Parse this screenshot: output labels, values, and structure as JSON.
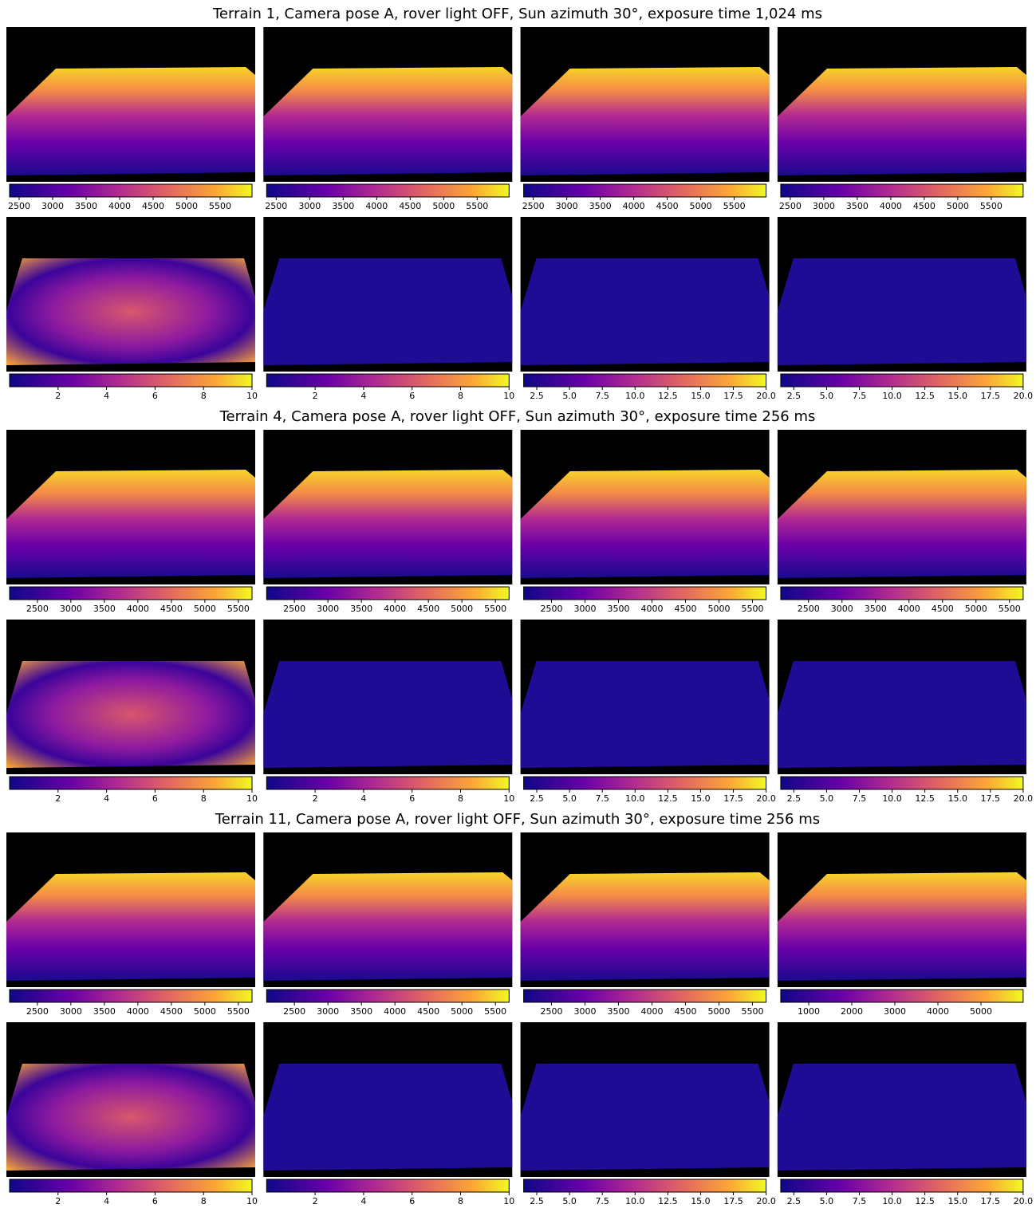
{
  "sections": [
    {
      "title": "Terrain 1, Camera pose A, rover light OFF, Sun azimuth 30°, exposure time 1,024 ms",
      "rows": [
        {
          "colorbars": [
            {
              "range": [
                2357,
                5976
              ],
              "ticks": [
                2500,
                3000,
                3500,
                4000,
                4500,
                5000,
                5500
              ]
            },
            {
              "range": [
                2357,
                5976
              ],
              "ticks": [
                2500,
                3000,
                3500,
                4000,
                4500,
                5000,
                5500
              ]
            },
            {
              "range": [
                2357,
                5976
              ],
              "ticks": [
                2500,
                3000,
                3500,
                4000,
                4500,
                5000,
                5500
              ]
            },
            {
              "range": [
                2357,
                5976
              ],
              "ticks": [
                2500,
                3000,
                3500,
                4000,
                4500,
                5000,
                5500
              ]
            }
          ]
        },
        {
          "colorbars": [
            {
              "range": [
                0,
                10
              ],
              "ticks": [
                2,
                4,
                6,
                8,
                10
              ]
            },
            {
              "range": [
                0,
                10
              ],
              "ticks": [
                2,
                4,
                6,
                8,
                10
              ]
            },
            {
              "range": [
                1.5,
                20
              ],
              "ticks": [
                2.5,
                {
                  "value": 5,
                  "label": "5.0"
                },
                7.5,
                {
                  "value": 10,
                  "label": "10.0"
                },
                12.5,
                {
                  "value": 15,
                  "label": "15.0"
                },
                17.5,
                {
                  "value": 20,
                  "label": "20.0"
                }
              ]
            },
            {
              "range": [
                1.5,
                20
              ],
              "ticks": [
                2.5,
                {
                  "value": 5,
                  "label": "5.0"
                },
                7.5,
                {
                  "value": 10,
                  "label": "10.0"
                },
                12.5,
                {
                  "value": 15,
                  "label": "15.0"
                },
                17.5,
                {
                  "value": 20,
                  "label": "20.0"
                }
              ]
            }
          ]
        }
      ]
    },
    {
      "title": "Terrain 4, Camera pose A, rover light OFF, Sun azimuth 30°, exposure time 256 ms",
      "rows": [
        {
          "colorbars": [
            {
              "range": [
                2085,
                5704
              ],
              "ticks": [
                2500,
                3000,
                3500,
                4000,
                4500,
                5000,
                5500
              ]
            },
            {
              "range": [
                2085,
                5704
              ],
              "ticks": [
                2500,
                3000,
                3500,
                4000,
                4500,
                5000,
                5500
              ]
            },
            {
              "range": [
                2085,
                5704
              ],
              "ticks": [
                2500,
                3000,
                3500,
                4000,
                4500,
                5000,
                5500
              ]
            },
            {
              "range": [
                2085,
                5704
              ],
              "ticks": [
                2500,
                3000,
                3500,
                4000,
                4500,
                5000,
                5500
              ]
            }
          ]
        },
        {
          "colorbars": [
            {
              "range": [
                0,
                10
              ],
              "ticks": [
                2,
                4,
                6,
                8,
                10
              ]
            },
            {
              "range": [
                0,
                10
              ],
              "ticks": [
                2,
                4,
                6,
                8,
                10
              ]
            },
            {
              "range": [
                1.5,
                20
              ],
              "ticks": [
                2.5,
                {
                  "value": 5,
                  "label": "5.0"
                },
                7.5,
                {
                  "value": 10,
                  "label": "10.0"
                },
                12.5,
                {
                  "value": 15,
                  "label": "15.0"
                },
                17.5,
                {
                  "value": 20,
                  "label": "20.0"
                }
              ]
            },
            {
              "range": [
                1.5,
                20
              ],
              "ticks": [
                2.5,
                {
                  "value": 5,
                  "label": "5.0"
                },
                7.5,
                {
                  "value": 10,
                  "label": "10.0"
                },
                12.5,
                {
                  "value": 15,
                  "label": "15.0"
                },
                17.5,
                {
                  "value": 20,
                  "label": "20.0"
                }
              ]
            }
          ]
        }
      ]
    },
    {
      "title": "Terrain 11, Camera pose A, rover light OFF, Sun azimuth 30°, exposure time 256 ms",
      "rows": [
        {
          "colorbars": [
            {
              "range": [
                2085,
                5704
              ],
              "ticks": [
                2500,
                3000,
                3500,
                4000,
                4500,
                5000,
                5500
              ]
            },
            {
              "range": [
                2085,
                5704
              ],
              "ticks": [
                2500,
                3000,
                3500,
                4000,
                4500,
                5000,
                5500
              ]
            },
            {
              "range": [
                2085,
                5704
              ],
              "ticks": [
                2500,
                3000,
                3500,
                4000,
                4500,
                5000,
                5500
              ]
            },
            {
              "range": [
                350,
                5980
              ],
              "ticks": [
                1000,
                2000,
                3000,
                4000,
                5000
              ]
            }
          ]
        },
        {
          "colorbars": [
            {
              "range": [
                0,
                10
              ],
              "ticks": [
                2,
                4,
                6,
                8,
                10
              ]
            },
            {
              "range": [
                0,
                10
              ],
              "ticks": [
                2,
                4,
                6,
                8,
                10
              ]
            },
            {
              "range": [
                1.5,
                20
              ],
              "ticks": [
                2.5,
                {
                  "value": 5,
                  "label": "5.0"
                },
                7.5,
                {
                  "value": 10,
                  "label": "10.0"
                },
                12.5,
                {
                  "value": 15,
                  "label": "15.0"
                },
                17.5,
                {
                  "value": 20,
                  "label": "20.0"
                }
              ]
            },
            {
              "range": [
                1.5,
                20
              ],
              "ticks": [
                2.5,
                {
                  "value": 5,
                  "label": "5.0"
                },
                7.5,
                {
                  "value": 10,
                  "label": "10.0"
                },
                12.5,
                {
                  "value": 15,
                  "label": "15.0"
                },
                17.5,
                {
                  "value": 20,
                  "label": "20.0"
                }
              ]
            }
          ]
        }
      ]
    }
  ]
}
